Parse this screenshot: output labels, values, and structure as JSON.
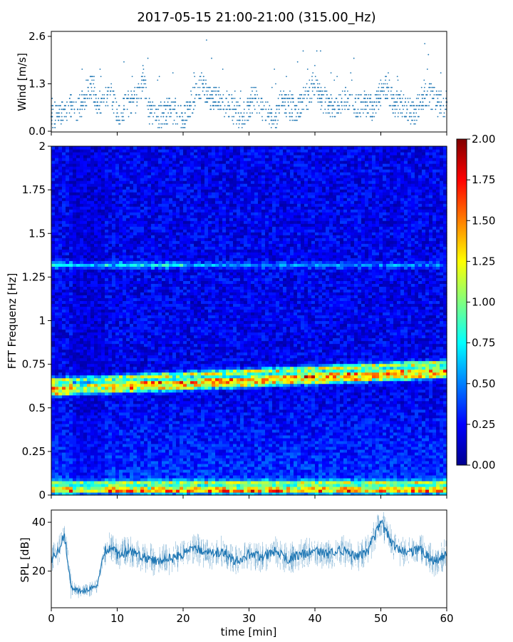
{
  "title": "2017-05-15 21:00-21:00 (315.00_Hz)",
  "chart_data": [
    {
      "type": "scatter",
      "panel": "wind",
      "ylabel": "Wind [m/s]",
      "xlim": [
        0,
        60
      ],
      "ylim": [
        0,
        2.6
      ],
      "yticks": [
        0.0,
        1.3,
        2.6
      ],
      "ytick_labels": [
        "0.0",
        "1.3",
        "2.6"
      ],
      "color": "#1f77b4",
      "x": [
        0,
        1,
        2,
        3,
        4,
        5,
        6,
        7,
        8,
        9,
        10,
        11,
        12,
        13,
        14,
        15,
        16,
        17,
        18,
        19,
        20,
        21,
        22,
        23,
        24,
        25,
        26,
        27,
        28,
        29,
        30,
        31,
        32,
        33,
        34,
        35,
        36,
        37,
        38,
        39,
        40,
        41,
        42,
        43,
        44,
        45,
        46,
        47,
        48,
        49,
        50,
        51,
        52,
        53,
        54,
        55,
        56,
        57,
        58,
        59,
        60
      ],
      "y": [
        0.4,
        0.5,
        0.6,
        0.7,
        0.6,
        0.9,
        1.3,
        0.8,
        0.9,
        1.1,
        0.5,
        0.6,
        0.8,
        0.9,
        1.4,
        0.5,
        0.4,
        0.5,
        0.6,
        0.5,
        0.3,
        0.7,
        1.0,
        1.3,
        0.9,
        1.0,
        0.8,
        0.7,
        0.5,
        0.4,
        0.7,
        0.9,
        0.6,
        0.4,
        0.3,
        0.9,
        0.7,
        0.6,
        0.8,
        1.0,
        1.2,
        0.9,
        0.7,
        0.6,
        0.8,
        0.9,
        0.6,
        0.8,
        0.7,
        0.6,
        1.1,
        1.2,
        0.7,
        0.8,
        0.6,
        0.5,
        0.8,
        1.0,
        0.9,
        0.7,
        0.8
      ]
    },
    {
      "type": "heatmap",
      "panel": "spectrogram",
      "ylabel": "FFT Frequenz [Hz]",
      "xlim": [
        0,
        60
      ],
      "ylim": [
        0,
        2
      ],
      "yticks": [
        0,
        0.25,
        0.5,
        0.75,
        1,
        1.25,
        1.5,
        1.75,
        2
      ],
      "ytick_labels": [
        "0",
        "0.25",
        "0.5",
        "0.75",
        "1",
        "1.25",
        "1.5",
        "1.75",
        "2"
      ],
      "colormap": "jet",
      "colorbar": {
        "range": [
          0,
          2
        ],
        "ticks": [
          "0.00",
          "0.25",
          "0.50",
          "0.75",
          "1.00",
          "1.25",
          "1.50",
          "1.75",
          "2.00"
        ]
      },
      "bands": [
        {
          "freq": 0.03,
          "strength": 1.4
        },
        {
          "freq": 0.07,
          "strength": 0.9
        },
        {
          "freq": 0.63,
          "strength": 1.2
        },
        {
          "freq": 0.66,
          "strength": 1.4
        },
        {
          "freq": 0.7,
          "strength": 1.1
        },
        {
          "freq": 1.32,
          "strength": 0.6
        }
      ]
    },
    {
      "type": "line",
      "panel": "spl",
      "ylabel": "SPL [dB]",
      "xlabel": "time [min]",
      "xlim": [
        0,
        60
      ],
      "ylim": [
        5,
        45
      ],
      "yticks": [
        20,
        40
      ],
      "ytick_labels": [
        "20",
        "40"
      ],
      "xticks": [
        0,
        10,
        20,
        30,
        40,
        50,
        60
      ],
      "xtick_labels": [
        "0",
        "10",
        "20",
        "30",
        "40",
        "50",
        "60"
      ],
      "color": "#1f77b4",
      "x": [
        0,
        1,
        2,
        3,
        4,
        5,
        6,
        7,
        8,
        9,
        10,
        12,
        14,
        16,
        18,
        20,
        22,
        24,
        26,
        28,
        30,
        32,
        34,
        36,
        38,
        40,
        42,
        44,
        46,
        48,
        50,
        52,
        54,
        56,
        58,
        60
      ],
      "y": [
        25,
        28,
        35,
        13,
        12,
        12,
        13,
        14,
        28,
        30,
        27,
        28,
        26,
        24,
        25,
        27,
        29,
        27,
        28,
        24,
        27,
        26,
        28,
        25,
        27,
        28,
        27,
        29,
        26,
        28,
        40,
        30,
        27,
        29,
        24,
        27
      ]
    }
  ]
}
